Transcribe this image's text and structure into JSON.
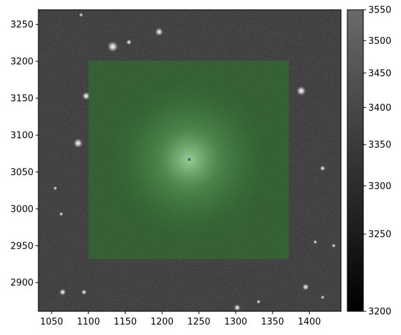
{
  "chart_data": {
    "type": "heatmap",
    "title": "",
    "xlabel": "",
    "ylabel": "",
    "xlim": [
      1032,
      1443
    ],
    "ylim": [
      2861,
      3270
    ],
    "x_ticks": [
      1050,
      1100,
      1150,
      1200,
      1250,
      1300,
      1350,
      1400
    ],
    "y_ticks": [
      2900,
      2950,
      3000,
      3050,
      3100,
      3150,
      3200,
      3250
    ],
    "colormap": "gray",
    "colorbar": {
      "ticks": [
        3200,
        3250,
        3300,
        3350,
        3400,
        3450,
        3500,
        3550
      ],
      "range": [
        3200,
        3550
      ],
      "scale": "nonlinear"
    },
    "overlay_region": {
      "shape": "rectangle",
      "color": "#2a7a2a",
      "x_range": [
        1100,
        1372
      ],
      "y_range": [
        2932,
        3201
      ]
    },
    "central_source": {
      "x": 1237,
      "y": 3067,
      "marker_color": "#4a6a8a"
    },
    "sources": [
      {
        "x": 1090,
        "y": 3263,
        "r": 3
      },
      {
        "x": 1133,
        "y": 3220,
        "r": 8
      },
      {
        "x": 1155,
        "y": 3226,
        "r": 4
      },
      {
        "x": 1196,
        "y": 3240,
        "r": 6
      },
      {
        "x": 1097,
        "y": 3153,
        "r": 6
      },
      {
        "x": 1389,
        "y": 3160,
        "r": 7
      },
      {
        "x": 1086,
        "y": 3089,
        "r": 7
      },
      {
        "x": 1418,
        "y": 3055,
        "r": 4
      },
      {
        "x": 1063,
        "y": 2993,
        "r": 3
      },
      {
        "x": 1055,
        "y": 3028,
        "r": 3
      },
      {
        "x": 1408,
        "y": 2955,
        "r": 3
      },
      {
        "x": 1433,
        "y": 2950,
        "r": 3
      },
      {
        "x": 1065,
        "y": 2887,
        "r": 5
      },
      {
        "x": 1094,
        "y": 2887,
        "r": 4
      },
      {
        "x": 1302,
        "y": 2866,
        "r": 5
      },
      {
        "x": 1331,
        "y": 2874,
        "r": 3
      },
      {
        "x": 1395,
        "y": 2894,
        "r": 5
      },
      {
        "x": 1418,
        "y": 2880,
        "r": 3
      }
    ]
  }
}
